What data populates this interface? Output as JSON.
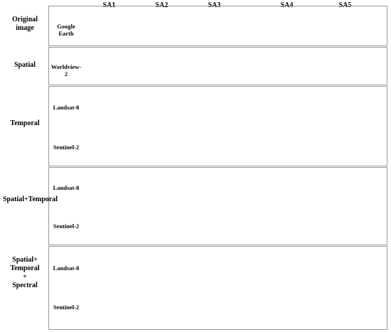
{
  "columns": [
    "SA1",
    "SA2",
    "SA3",
    "SA4",
    "SA5"
  ],
  "groups": [
    {
      "label": "Original\nimage",
      "rows": [
        {
          "label": "Google Earth",
          "kind": "photo"
        }
      ]
    },
    {
      "label": "Spatial",
      "rows": [
        {
          "label": "Worldview-2",
          "kind": "map"
        }
      ]
    },
    {
      "label": "Temporal",
      "rows": [
        {
          "label": "Landsat-8",
          "kind": "map"
        },
        {
          "label": "Sentinel-2",
          "kind": "map"
        }
      ]
    },
    {
      "label": "Spatial+Temporal",
      "rows": [
        {
          "label": "Landsat-8",
          "kind": "map"
        },
        {
          "label": "Sentinel-2",
          "kind": "map"
        }
      ]
    },
    {
      "label": "Spatial+\nTemporal\n+\nSpectral",
      "rows": [
        {
          "label": "Landsat-8",
          "kind": "map"
        },
        {
          "label": "Sentinel-2",
          "kind": "map"
        }
      ]
    }
  ],
  "colors": {
    "yellow": "#f4c430",
    "purple": "#a020f0",
    "green": "#1f7a1f",
    "lightgreen": "#9acd32",
    "red": "#d21f1f",
    "lightyellow": "#f5ee50",
    "box": "#000000"
  }
}
